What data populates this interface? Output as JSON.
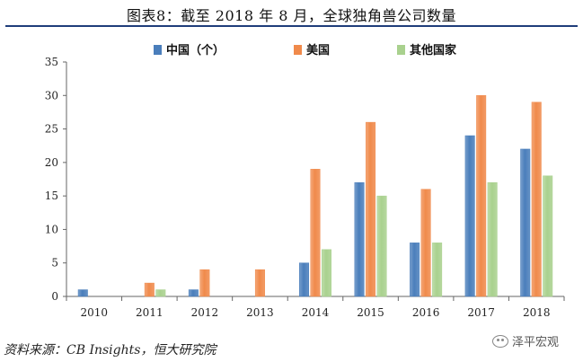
{
  "title": "图表8：截至 2018 年 8 月，全球独角兽公司数量",
  "source": "资料来源：CB Insights，恒大研究院",
  "watermark": {
    "text": "泽平宏观",
    "icon": "wechat-icon"
  },
  "chart_data": {
    "type": "bar",
    "categories": [
      "2010",
      "2011",
      "2012",
      "2013",
      "2014",
      "2015",
      "2016",
      "2017",
      "2018"
    ],
    "series": [
      {
        "name": "中国（个）",
        "color": "#4a7ebb",
        "values": [
          1,
          0,
          1,
          0,
          5,
          17,
          8,
          24,
          22
        ]
      },
      {
        "name": "美国",
        "color": "#f08a4b",
        "values": [
          0,
          2,
          4,
          4,
          19,
          26,
          16,
          30,
          29
        ]
      },
      {
        "name": "其他国家",
        "color": "#a9d18e",
        "values": [
          0,
          1,
          0,
          0,
          7,
          15,
          8,
          17,
          18
        ]
      }
    ],
    "yticks": [
      "0",
      "5",
      "10",
      "15",
      "20",
      "25",
      "30",
      "35"
    ],
    "ylim": [
      0,
      35
    ],
    "grid": false,
    "legend_position": "top-center"
  }
}
